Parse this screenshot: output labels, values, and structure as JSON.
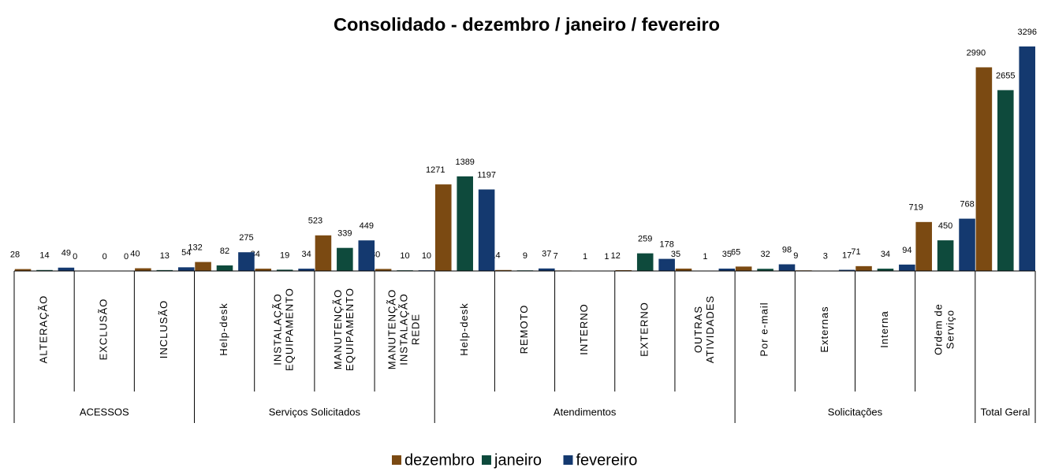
{
  "chart_data": {
    "type": "bar",
    "title": "Consolidado - dezembro / janeiro / fevereiro",
    "groups": [
      {
        "name": "ACESSOS",
        "categories": [
          [
            "ALTERAÇÃO"
          ],
          [
            "EXCLUSÃO"
          ],
          [
            "INCLUSÃO"
          ]
        ]
      },
      {
        "name": "Serviços Solicitados",
        "categories": [
          [
            "Help-desk"
          ],
          [
            "INSTALAÇÃO",
            "EQUIPAMENTO"
          ],
          [
            "MANUTENÇÃO",
            "EQUIPAMENTO"
          ],
          [
            "MANUTENÇÃO",
            "INSTALAÇÃO",
            "REDE"
          ]
        ]
      },
      {
        "name": "Atendimentos",
        "categories": [
          [
            "Help-desk"
          ],
          [
            "REMOTO"
          ],
          [
            "INTERNO"
          ],
          [
            "EXTERNO"
          ],
          [
            "OUTRAS",
            "ATIVIDADES"
          ]
        ]
      },
      {
        "name": "Solicitações",
        "categories": [
          [
            "Por e-mail"
          ],
          [
            "Externas"
          ],
          [
            "Interna"
          ],
          [
            "Ordem de",
            "Serviço"
          ]
        ]
      },
      {
        "name": "Total Geral",
        "categories": [
          null
        ]
      }
    ],
    "series": [
      {
        "name": "dezembro",
        "color": "#7b4a12",
        "values": [
          28,
          0,
          40,
          132,
          34,
          523,
          30,
          1271,
          14,
          7,
          12,
          35,
          65,
          9,
          71,
          719,
          2990
        ]
      },
      {
        "name": "janeiro",
        "color": "#0e4a3c",
        "values": [
          14,
          0,
          13,
          82,
          19,
          339,
          10,
          1389,
          9,
          1,
          259,
          1,
          32,
          3,
          34,
          450,
          2655
        ]
      },
      {
        "name": "fevereiro",
        "color": "#14396f",
        "values": [
          49,
          0,
          54,
          275,
          34,
          449,
          10,
          1197,
          37,
          1,
          178,
          35,
          98,
          17,
          94,
          768,
          3296
        ]
      }
    ],
    "legend": "bottom"
  }
}
